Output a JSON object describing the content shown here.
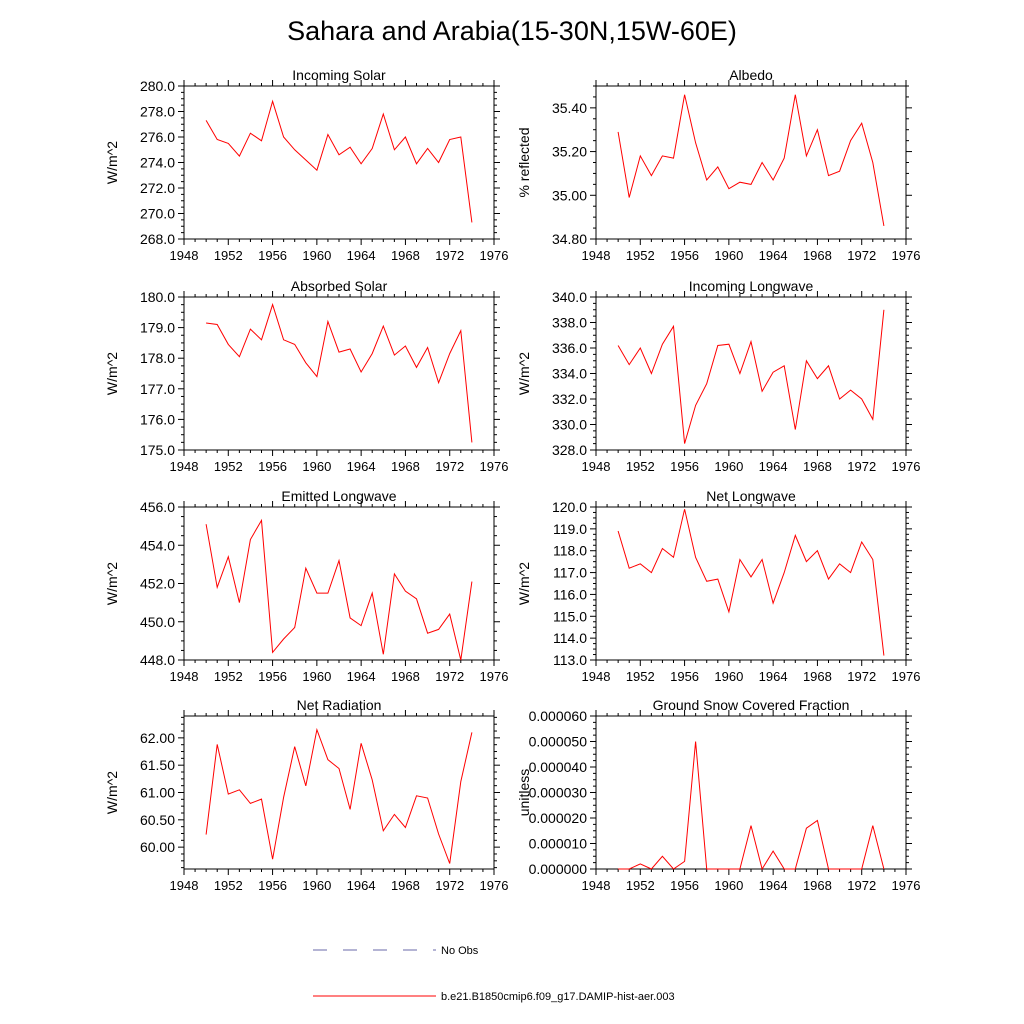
{
  "page_title": "Sahara and Arabia(15-30N,15W-60E)",
  "legend": {
    "entries": [
      {
        "label": "No Obs",
        "color": "#6a6aa8",
        "style": "dashed"
      },
      {
        "label": "b.e21.B1850cmip6.f09_g17.DAMIP-hist-aer.003",
        "color": "#ff0000",
        "style": "solid"
      }
    ]
  },
  "chart_data": [
    {
      "type": "line",
      "title": "Incoming Solar",
      "ylabel": "W/m^2",
      "xlim": [
        1948,
        1976
      ],
      "ylim": [
        268,
        280
      ],
      "x_ticks": [
        1948,
        1952,
        1956,
        1960,
        1964,
        1968,
        1972,
        1976
      ],
      "y_ticks": [
        "268.0",
        "270.0",
        "272.0",
        "274.0",
        "276.0",
        "278.0",
        "280.0"
      ],
      "series": [
        {
          "color": "#ff0000",
          "x": [
            1950,
            1951,
            1952,
            1953,
            1954,
            1955,
            1956,
            1957,
            1958,
            1959,
            1960,
            1961,
            1962,
            1963,
            1964,
            1965,
            1966,
            1967,
            1968,
            1969,
            1970,
            1971,
            1972,
            1973,
            1974
          ],
          "values": [
            277.3,
            275.8,
            275.5,
            274.5,
            276.3,
            275.7,
            278.8,
            276.0,
            275.0,
            274.2,
            273.4,
            276.2,
            274.6,
            275.2,
            273.9,
            275.1,
            277.8,
            275.0,
            276.0,
            273.9,
            275.1,
            274.0,
            275.8,
            276.0,
            269.3
          ]
        }
      ]
    },
    {
      "type": "line",
      "title": "Albedo",
      "ylabel": "% reflected",
      "xlim": [
        1948,
        1976
      ],
      "ylim": [
        34.8,
        35.5
      ],
      "x_ticks": [
        1948,
        1952,
        1956,
        1960,
        1964,
        1968,
        1972,
        1976
      ],
      "y_ticks": [
        "34.80",
        "35.00",
        "35.20",
        "35.40"
      ],
      "series": [
        {
          "color": "#ff0000",
          "x": [
            1950,
            1951,
            1952,
            1953,
            1954,
            1955,
            1956,
            1957,
            1958,
            1959,
            1960,
            1961,
            1962,
            1963,
            1964,
            1965,
            1966,
            1967,
            1968,
            1969,
            1970,
            1971,
            1972,
            1973,
            1974
          ],
          "values": [
            35.29,
            34.99,
            35.18,
            35.09,
            35.18,
            35.17,
            35.46,
            35.24,
            35.07,
            35.13,
            35.03,
            35.06,
            35.05,
            35.15,
            35.07,
            35.17,
            35.46,
            35.18,
            35.3,
            35.09,
            35.11,
            35.25,
            35.33,
            35.15,
            34.86
          ]
        }
      ]
    },
    {
      "type": "line",
      "title": "Absorbed Solar",
      "ylabel": "W/m^2",
      "xlim": [
        1948,
        1976
      ],
      "ylim": [
        175,
        180
      ],
      "x_ticks": [
        1948,
        1952,
        1956,
        1960,
        1964,
        1968,
        1972,
        1976
      ],
      "y_ticks": [
        "175.0",
        "176.0",
        "177.0",
        "178.0",
        "179.0",
        "180.0"
      ],
      "series": [
        {
          "color": "#ff0000",
          "x": [
            1950,
            1951,
            1952,
            1953,
            1954,
            1955,
            1956,
            1957,
            1958,
            1959,
            1960,
            1961,
            1962,
            1963,
            1964,
            1965,
            1966,
            1967,
            1968,
            1969,
            1970,
            1971,
            1972,
            1973,
            1974
          ],
          "values": [
            179.15,
            179.1,
            178.45,
            178.05,
            178.95,
            178.6,
            179.75,
            178.6,
            178.45,
            177.85,
            177.4,
            179.2,
            178.2,
            178.3,
            177.55,
            178.15,
            179.05,
            178.1,
            178.4,
            177.7,
            178.35,
            177.2,
            178.15,
            178.9,
            175.25
          ]
        }
      ]
    },
    {
      "type": "line",
      "title": "Incoming Longwave",
      "ylabel": "W/m^2",
      "xlim": [
        1948,
        1976
      ],
      "ylim": [
        328,
        340
      ],
      "x_ticks": [
        1948,
        1952,
        1956,
        1960,
        1964,
        1968,
        1972,
        1976
      ],
      "y_ticks": [
        "328.0",
        "330.0",
        "332.0",
        "334.0",
        "336.0",
        "338.0",
        "340.0"
      ],
      "series": [
        {
          "color": "#ff0000",
          "x": [
            1950,
            1951,
            1952,
            1953,
            1954,
            1955,
            1956,
            1957,
            1958,
            1959,
            1960,
            1961,
            1962,
            1963,
            1964,
            1965,
            1966,
            1967,
            1968,
            1969,
            1970,
            1971,
            1972,
            1973,
            1974
          ],
          "values": [
            336.2,
            334.7,
            336.0,
            334.0,
            336.3,
            337.7,
            328.5,
            331.5,
            333.2,
            336.2,
            336.3,
            334.0,
            336.5,
            332.6,
            334.1,
            334.6,
            329.6,
            335.0,
            333.6,
            334.6,
            332.0,
            332.7,
            332.0,
            330.4,
            339.0
          ]
        }
      ]
    },
    {
      "type": "line",
      "title": "Emitted Longwave",
      "ylabel": "W/m^2",
      "xlim": [
        1948,
        1976
      ],
      "ylim": [
        448,
        456
      ],
      "x_ticks": [
        1948,
        1952,
        1956,
        1960,
        1964,
        1968,
        1972,
        1976
      ],
      "y_ticks": [
        "448.0",
        "450.0",
        "452.0",
        "454.0",
        "456.0"
      ],
      "series": [
        {
          "color": "#ff0000",
          "x": [
            1950,
            1951,
            1952,
            1953,
            1954,
            1955,
            1956,
            1957,
            1958,
            1959,
            1960,
            1961,
            1962,
            1963,
            1964,
            1965,
            1966,
            1967,
            1968,
            1969,
            1970,
            1971,
            1972,
            1973,
            1974
          ],
          "values": [
            455.1,
            451.8,
            453.4,
            451.0,
            454.3,
            455.3,
            448.4,
            449.1,
            449.7,
            452.8,
            451.5,
            451.5,
            453.2,
            450.2,
            449.8,
            451.5,
            448.3,
            452.5,
            451.6,
            451.2,
            449.4,
            449.6,
            450.4,
            448.0,
            452.1
          ]
        }
      ]
    },
    {
      "type": "line",
      "title": "Net Longwave",
      "ylabel": "W/m^2",
      "xlim": [
        1948,
        1976
      ],
      "ylim": [
        113,
        120
      ],
      "x_ticks": [
        1948,
        1952,
        1956,
        1960,
        1964,
        1968,
        1972,
        1976
      ],
      "y_ticks": [
        "113.0",
        "114.0",
        "115.0",
        "116.0",
        "117.0",
        "118.0",
        "119.0",
        "120.0"
      ],
      "series": [
        {
          "color": "#ff0000",
          "x": [
            1950,
            1951,
            1952,
            1953,
            1954,
            1955,
            1956,
            1957,
            1958,
            1959,
            1960,
            1961,
            1962,
            1963,
            1964,
            1965,
            1966,
            1967,
            1968,
            1969,
            1970,
            1971,
            1972,
            1973,
            1974
          ],
          "values": [
            118.9,
            117.2,
            117.4,
            117.0,
            118.1,
            117.7,
            119.9,
            117.7,
            116.6,
            116.7,
            115.2,
            117.6,
            116.8,
            117.6,
            115.6,
            117.0,
            118.7,
            117.5,
            118.0,
            116.7,
            117.4,
            117.0,
            118.4,
            117.6,
            113.2
          ]
        }
      ]
    },
    {
      "type": "line",
      "title": "Net Radiation",
      "ylabel": "W/m^2",
      "xlim": [
        1948,
        1976
      ],
      "ylim": [
        59.6,
        62.4
      ],
      "x_ticks": [
        1948,
        1952,
        1956,
        1960,
        1964,
        1968,
        1972,
        1976
      ],
      "y_ticks": [
        "60.00",
        "60.50",
        "61.00",
        "61.50",
        "62.00"
      ],
      "series": [
        {
          "color": "#ff0000",
          "x": [
            1950,
            1951,
            1952,
            1953,
            1954,
            1955,
            1956,
            1957,
            1958,
            1959,
            1960,
            1961,
            1962,
            1963,
            1964,
            1965,
            1966,
            1967,
            1968,
            1969,
            1970,
            1971,
            1972,
            1973,
            1974
          ],
          "values": [
            60.23,
            61.88,
            60.97,
            61.05,
            60.8,
            60.88,
            59.78,
            60.91,
            61.84,
            61.12,
            62.15,
            61.6,
            61.44,
            60.69,
            61.9,
            61.23,
            60.3,
            60.6,
            60.36,
            60.94,
            60.9,
            60.24,
            59.7,
            61.2,
            62.1
          ]
        }
      ]
    },
    {
      "type": "line",
      "title": "Ground Snow Covered Fraction",
      "ylabel": "unitless",
      "xlim": [
        1948,
        1976
      ],
      "ylim": [
        0,
        6e-05
      ],
      "x_ticks": [
        1948,
        1952,
        1956,
        1960,
        1964,
        1968,
        1972,
        1976
      ],
      "y_ticks": [
        "0.000000",
        "0.000010",
        "0.000020",
        "0.000030",
        "0.000040",
        "0.000050",
        "0.000060"
      ],
      "series": [
        {
          "color": "#ff0000",
          "x": [
            1950,
            1951,
            1952,
            1953,
            1954,
            1955,
            1956,
            1957,
            1958,
            1959,
            1960,
            1961,
            1962,
            1963,
            1964,
            1965,
            1966,
            1967,
            1968,
            1969,
            1970,
            1971,
            1972,
            1973,
            1974
          ],
          "values": [
            0,
            0,
            2e-06,
            0,
            5e-06,
            0,
            3e-06,
            5e-05,
            0,
            0,
            0,
            0,
            1.7e-05,
            0,
            7e-06,
            0,
            0,
            1.6e-05,
            1.9e-05,
            0,
            0,
            0,
            0,
            1.7e-05,
            0
          ]
        }
      ]
    }
  ]
}
